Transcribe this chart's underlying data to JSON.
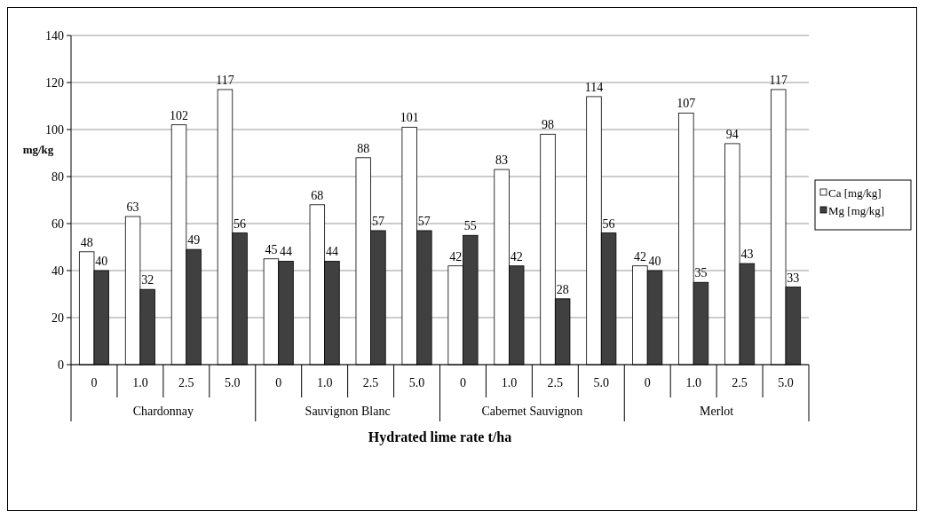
{
  "chart_data": {
    "type": "bar",
    "xlabel": "Hydrated lime rate t/ha",
    "ylabel": "mg/kg",
    "categories": [
      "0",
      "1.0",
      "2.5",
      "5.0",
      "0",
      "1.0",
      "2.5",
      "5.0",
      "0",
      "1.0",
      "2.5",
      "5.0",
      "0",
      "1.0",
      "2.5",
      "5.0"
    ],
    "annotations": [
      "Chardonnay",
      "Sauvignon Blanc",
      "Cabernet Sauvignon",
      "Merlot"
    ],
    "series": [
      {
        "name": "Ca [mg/kg]",
        "color": "#ffffff",
        "values": [
          48,
          63,
          102,
          117,
          45,
          68,
          88,
          101,
          42,
          83,
          98,
          114,
          42,
          107,
          94,
          117
        ]
      },
      {
        "name": "Mg [mg/kg]",
        "color": "#404040",
        "values": [
          40,
          32,
          49,
          56,
          44,
          44,
          57,
          57,
          55,
          42,
          28,
          56,
          40,
          35,
          43,
          33
        ]
      }
    ],
    "ylim": [
      0,
      140
    ],
    "yticks": [
      0,
      20,
      40,
      60,
      80,
      100,
      120,
      140
    ],
    "grid": "y",
    "legend": "right",
    "data_labels": true
  }
}
